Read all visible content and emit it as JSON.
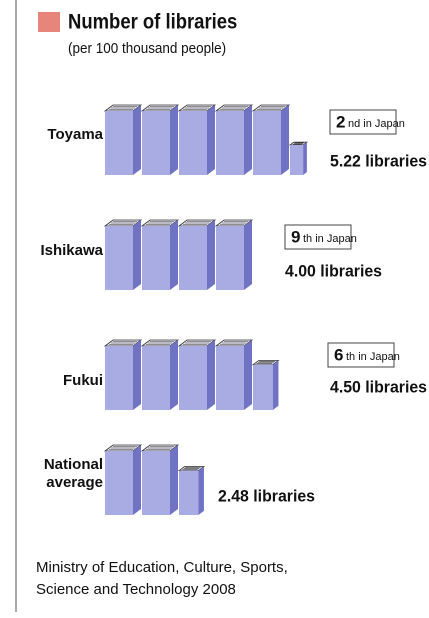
{
  "chart_data": {
    "type": "pictograph",
    "title": "Number of libraries",
    "subtitle": "(per 100 thousand people)",
    "categories": [
      "Toyama",
      "Ishikawa",
      "Fukui",
      "National average"
    ],
    "values": [
      5.22,
      4.0,
      4.5,
      2.48
    ],
    "value_labels": [
      "5.22 libraries",
      "4.00 libraries",
      "4.50 libraries",
      "2.48 libraries"
    ],
    "ranks": [
      2,
      9,
      6,
      null
    ],
    "rank_suffixes": [
      "nd in Japan",
      "th in Japan",
      "th in Japan",
      null
    ],
    "color": "#a9abe3",
    "source": [
      "Ministry of Education, Culture, Sports,",
      "Science and Technology 2008"
    ]
  }
}
